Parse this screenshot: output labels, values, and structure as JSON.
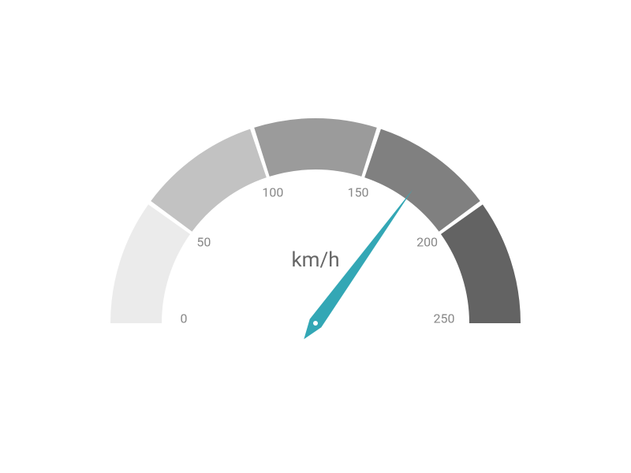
{
  "gauge": {
    "type": "radial-gauge",
    "min": 0,
    "max": 250,
    "value": 175,
    "unit_label": "km/h",
    "start_angle": 180,
    "end_angle": 360,
    "outer_radius": 260,
    "inner_radius": 195,
    "segments": [
      {
        "from": 0,
        "to": 50,
        "color": "#ebebeb"
      },
      {
        "from": 50,
        "to": 100,
        "color": "#c2c2c2"
      },
      {
        "from": 100,
        "to": 150,
        "color": "#9b9b9b"
      },
      {
        "from": 150,
        "to": 200,
        "color": "#808080"
      },
      {
        "from": 200,
        "to": 250,
        "color": "#636363"
      }
    ],
    "segment_gap_deg": 1.2,
    "ticks": [
      {
        "value": 0,
        "label": "0"
      },
      {
        "value": 50,
        "label": "50"
      },
      {
        "value": 100,
        "label": "100"
      },
      {
        "value": 150,
        "label": "150"
      },
      {
        "value": 200,
        "label": "200"
      },
      {
        "value": 250,
        "label": "250"
      }
    ],
    "tick_label_color": "#888888",
    "tick_label_fontsize": 16,
    "tick_label_offset": 20,
    "unit_label_color": "#666666",
    "unit_label_fontsize": 26,
    "unit_label_offset_y": -80,
    "needle": {
      "color": "#33a7b5",
      "length": 210,
      "base_width": 18,
      "cap_radius": 4,
      "cap_color": "#ffffff",
      "tail_length": 25
    },
    "background_color": "#ffffff"
  }
}
